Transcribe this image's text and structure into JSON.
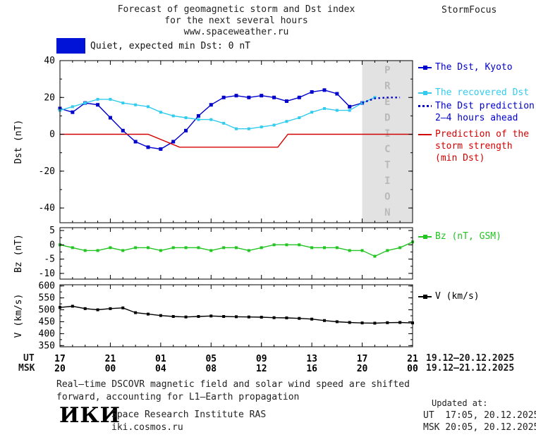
{
  "header": {
    "title_line1": "Forecast of geomagnetic storm and Dst index",
    "title_line2": "for the next several hours",
    "title_line3": "www.spaceweather.ru",
    "brand": "StormFocus"
  },
  "status": {
    "label": "Quiet, expected min Dst: 0 nT",
    "color": "#0013d6"
  },
  "axis": {
    "ut_label": "UT",
    "msk_label": "MSK",
    "ut_range": "19.12–20.12.2025",
    "msk_range": "19.12–21.12.2025"
  },
  "legend": {
    "items": [
      {
        "label": "The Dst, Kyoto",
        "color": "#0000cc",
        "style": "marker"
      },
      {
        "label": "The recovered Dst",
        "color": "#33ccee",
        "style": "marker"
      },
      {
        "label": "The Dst prediction\n2–4 hours ahead",
        "color": "#0000cc",
        "style": "dotted"
      },
      {
        "label": "Prediction of the\nstorm strength\n(min Dst)",
        "color": "#d40000",
        "style": "plain"
      },
      {
        "label": "Bz (nT, GSM)",
        "color": "#22c522",
        "style": "marker"
      },
      {
        "label": "V (km/s)",
        "color": "#000000",
        "style": "marker"
      }
    ]
  },
  "footer": {
    "note_line1": "Real–time DSCOVR magnetic field and solar wind speed are shifted",
    "note_line2": "forward, accounting for L1–Earth propagation",
    "logo": "ИКИ",
    "institute": "Space Research Institute RAS",
    "site": "iki.cosmos.ru",
    "updated_label": "Updated at:",
    "updated_ut": "UT  17:05, 20.12.2025",
    "updated_msk": "MSK 20:05, 20.12.2025"
  },
  "chart_data": [
    {
      "type": "line",
      "panel": "dst",
      "ylabel": "Dst (nT)",
      "ylim": [
        -48,
        40
      ],
      "yticks": [
        -40,
        -20,
        0,
        20,
        40
      ],
      "yminor_step": 10,
      "xlim": [
        0,
        28
      ],
      "xtick_positions": [
        0,
        4,
        8,
        12,
        16,
        20,
        24,
        28
      ],
      "prediction_band": {
        "from": 24,
        "label": "PREDICTION",
        "fill": "#e2e2e2",
        "text_color": "#b9b9b9"
      },
      "series": [
        {
          "name": "The Dst, Kyoto",
          "color": "#0000cc",
          "marker": "square",
          "marker_size": 5,
          "x": [
            0,
            1,
            2,
            3,
            4,
            5,
            6,
            7,
            8,
            9,
            10,
            11,
            12,
            13,
            14,
            15,
            16,
            17,
            18,
            19,
            20,
            21,
            22,
            23,
            24
          ],
          "y": [
            14,
            12,
            17,
            16,
            9,
            2,
            -4,
            -7,
            -8,
            -4,
            2,
            10,
            16,
            20,
            21,
            20,
            21,
            20,
            18,
            20,
            23,
            24,
            22,
            15,
            17
          ]
        },
        {
          "name": "The recovered Dst",
          "color": "#33ccee",
          "marker": "square",
          "marker_size": 4,
          "x": [
            0,
            1,
            2,
            3,
            4,
            5,
            6,
            7,
            8,
            9,
            10,
            11,
            12,
            13,
            14,
            15,
            16,
            17,
            18,
            19,
            20,
            21,
            22,
            23,
            24,
            25
          ],
          "y": [
            13,
            15,
            17,
            19,
            19,
            17,
            16,
            15,
            12,
            10,
            9,
            8,
            8,
            6,
            3,
            3,
            4,
            5,
            7,
            9,
            12,
            14,
            13,
            13,
            17,
            20
          ]
        },
        {
          "name": "The Dst prediction 2–4 hours ahead",
          "color": "#0000cc",
          "style": "dotted",
          "x": [
            24,
            25,
            26,
            27
          ],
          "y": [
            17,
            19.5,
            20,
            20
          ]
        },
        {
          "name": "Prediction of the storm strength (min Dst)",
          "color": "#d40000",
          "x": [
            0,
            7,
            9.5,
            17.3,
            18.1,
            28
          ],
          "y": [
            0,
            0,
            -7,
            -7,
            0,
            0
          ]
        }
      ]
    },
    {
      "type": "line",
      "panel": "bz",
      "ylabel": "Bz (nT)",
      "ylim": [
        -12,
        6
      ],
      "yticks": [
        -10,
        -5,
        0,
        5
      ],
      "yminor_step": 2.5,
      "xlim": [
        0,
        28
      ],
      "xtick_positions": [
        0,
        4,
        8,
        12,
        16,
        20,
        24,
        28
      ],
      "series": [
        {
          "name": "Bz (nT, GSM)",
          "color": "#22c522",
          "marker": "square",
          "marker_size": 4,
          "x": [
            0,
            1,
            2,
            3,
            4,
            5,
            6,
            7,
            8,
            9,
            10,
            11,
            12,
            13,
            14,
            15,
            16,
            17,
            18,
            19,
            20,
            21,
            22,
            23,
            24,
            25,
            26,
            27,
            28
          ],
          "y": [
            0,
            -1,
            -2,
            -2,
            -1,
            -2,
            -1,
            -1,
            -2,
            -1,
            -1,
            -1,
            -2,
            -1,
            -1,
            -2,
            -1,
            0,
            0,
            0,
            -1,
            -1,
            -1,
            -2,
            -2,
            -4,
            -2,
            -1,
            1
          ]
        }
      ]
    },
    {
      "type": "line",
      "panel": "v",
      "ylabel": "V (km/s)",
      "ylim": [
        345,
        605
      ],
      "yticks": [
        350,
        400,
        450,
        500,
        550,
        600
      ],
      "yminor_step": 25,
      "xlim": [
        0,
        28
      ],
      "xtick_positions": [
        0,
        4,
        8,
        12,
        16,
        20,
        24,
        28
      ],
      "xtick_labels_ut": [
        "17",
        "21",
        "01",
        "05",
        "09",
        "13",
        "17",
        "21"
      ],
      "xtick_labels_msk": [
        "20",
        "00",
        "04",
        "08",
        "12",
        "16",
        "20",
        "00"
      ],
      "series": [
        {
          "name": "V (km/s)",
          "color": "#000000",
          "marker": "square",
          "marker_size": 4,
          "x": [
            0,
            1,
            2,
            3,
            4,
            5,
            6,
            7,
            8,
            9,
            10,
            11,
            12,
            13,
            14,
            15,
            16,
            17,
            18,
            19,
            20,
            21,
            22,
            23,
            24,
            25,
            26,
            27,
            28
          ],
          "y": [
            510,
            515,
            505,
            500,
            505,
            508,
            488,
            482,
            476,
            472,
            470,
            472,
            474,
            472,
            471,
            470,
            469,
            467,
            466,
            464,
            461,
            455,
            450,
            447,
            445,
            444,
            446,
            447,
            445
          ]
        }
      ]
    }
  ]
}
